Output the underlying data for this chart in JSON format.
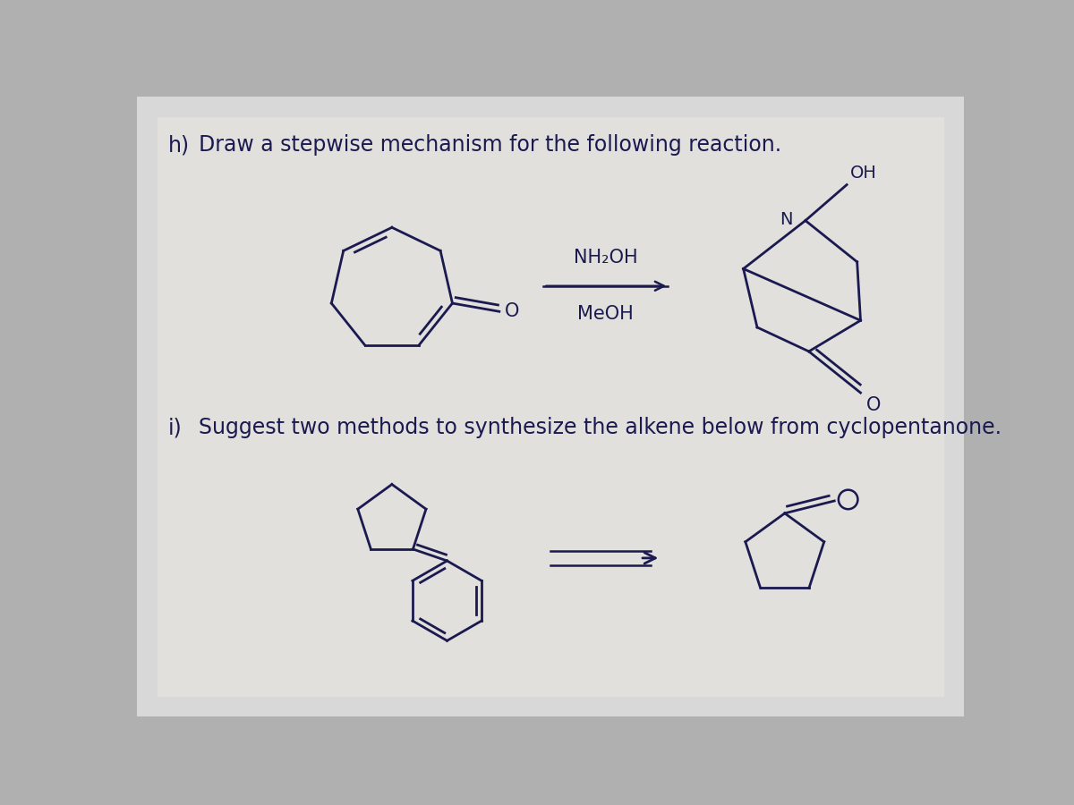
{
  "bg_color": "#c8c8c8",
  "panel_bg": "#e8e8e8",
  "text_color": "#1a1a50",
  "h_label": "h)",
  "h_text": "Draw a stepwise mechanism for the following reaction.",
  "i_label": "i)",
  "i_text": "Suggest two methods to synthesize the alkene below from cyclopentanone.",
  "reagent_top": "NH₂OH",
  "reagent_bottom": "MeOH",
  "oh_label": "OH",
  "n_label": "N",
  "o_label1": "O",
  "o_label2": "O"
}
